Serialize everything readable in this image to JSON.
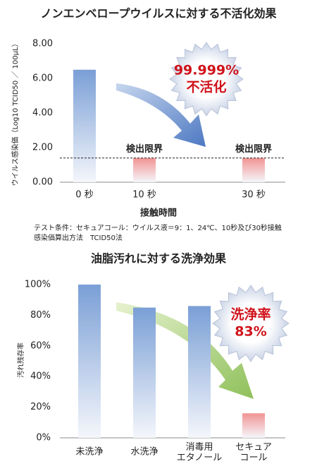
{
  "chart_data": [
    {
      "type": "bar",
      "title": "ノンエンベロープウイルスに対する不活化効果",
      "ylabel": "ウイルス感染価（Log10 TCID50 ／ 100μL）",
      "xlabel": "接触時間",
      "categories": [
        "0 秒",
        "10 秒",
        "30 秒"
      ],
      "values": [
        6.5,
        1.4,
        1.4
      ],
      "colors": [
        "#7a9fd6",
        "#f29494",
        "#f29494"
      ],
      "ylim": [
        0,
        8
      ],
      "yticks": [
        {
          "value": 0,
          "label": "0.00"
        },
        {
          "value": 2,
          "label": "2.00"
        },
        {
          "value": 4,
          "label": "4.00"
        },
        {
          "value": 6,
          "label": "6.00"
        },
        {
          "value": 8,
          "label": "8.00"
        }
      ],
      "detection_limit": 1.4,
      "annotations": [
        "検出限界",
        "検出限界"
      ],
      "callout": [
        "99.999%",
        "不活化"
      ],
      "notes": [
        "テスト条件：セキュアコール：ウイルス液＝9：1、24℃、10秒及び30秒接触",
        "感染価算出方法　TCID50法"
      ]
    },
    {
      "type": "bar",
      "title": "油脂汚れに対する洗浄効果",
      "ylabel": "汚れ残存率",
      "categories": [
        "未洗浄",
        "水洗浄",
        "消毒用\nエタノール",
        "セキュア\nコール"
      ],
      "values": [
        100,
        85,
        86,
        16
      ],
      "colors": [
        "#7a9fd6",
        "#7a9fd6",
        "#7a9fd6",
        "#f29494"
      ],
      "ylim": [
        0,
        100
      ],
      "yticks": [
        {
          "value": 0,
          "label": "0%"
        },
        {
          "value": 20,
          "label": "20%"
        },
        {
          "value": 40,
          "label": "40%"
        },
        {
          "value": 60,
          "label": "60%"
        },
        {
          "value": 80,
          "label": "80%"
        },
        {
          "value": 100,
          "label": "100%"
        }
      ],
      "callout": [
        "洗浄率",
        "83%"
      ]
    }
  ]
}
